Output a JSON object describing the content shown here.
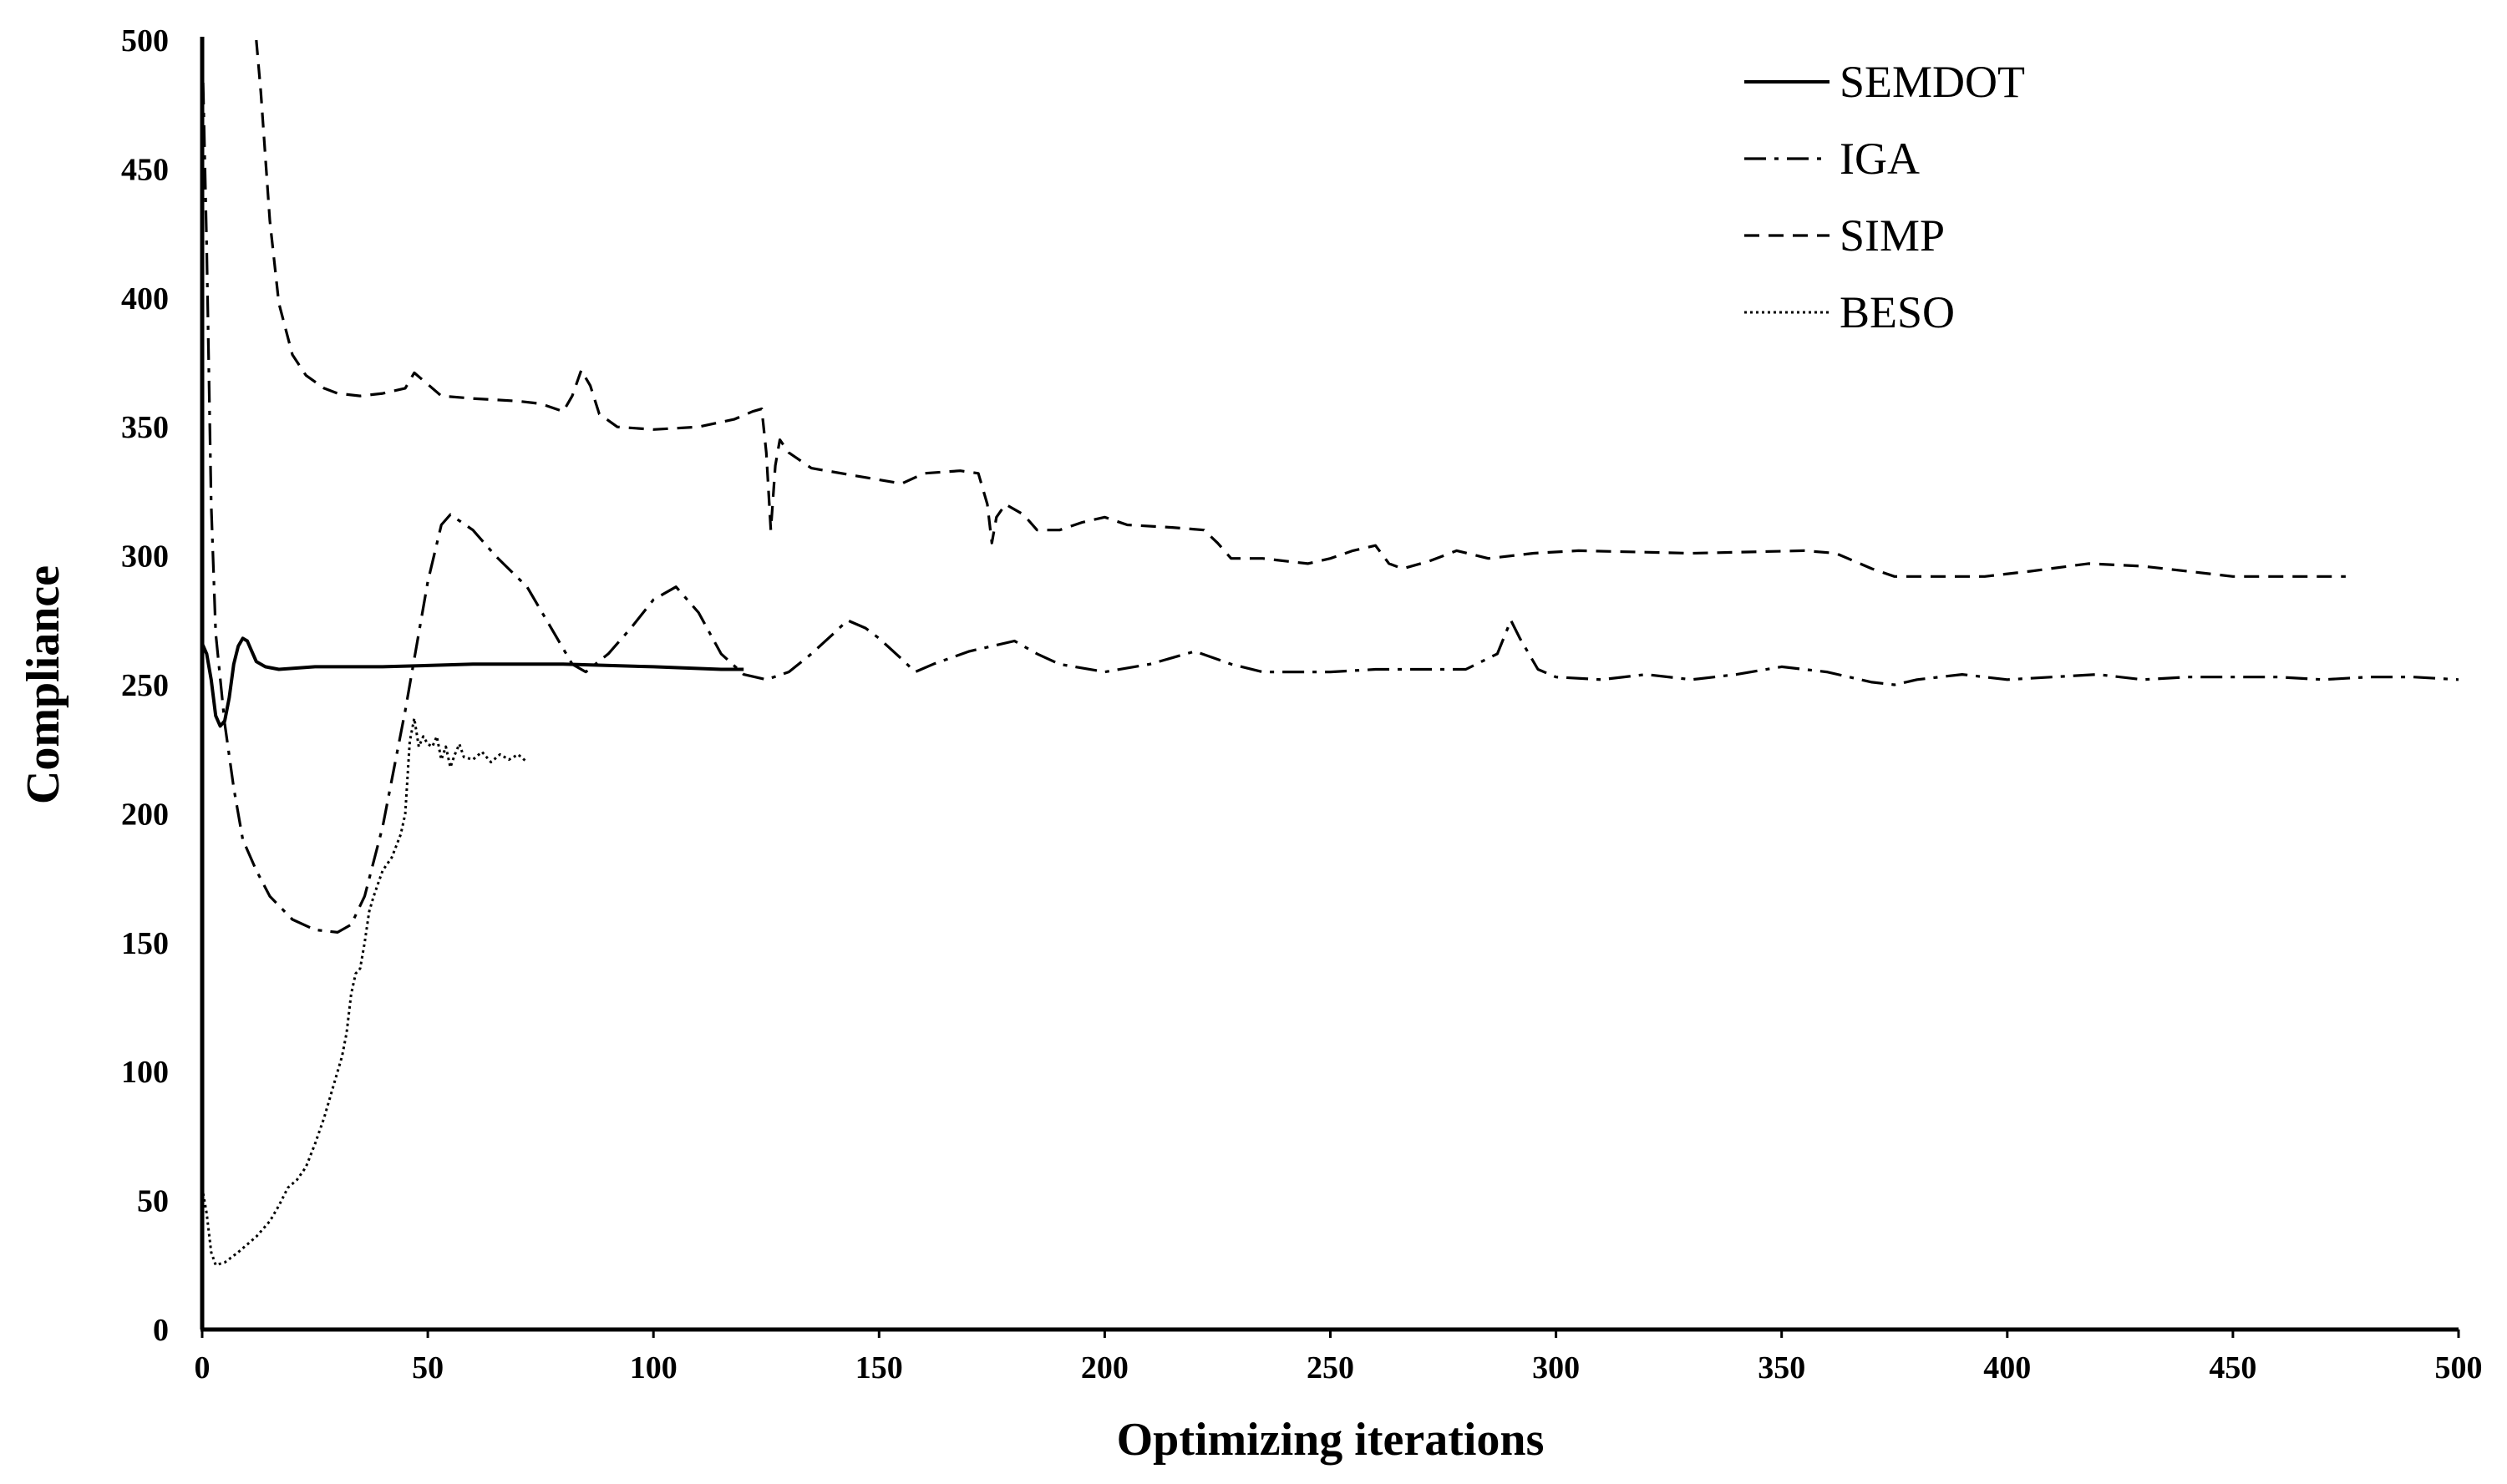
{
  "chart_data": {
    "type": "line",
    "title": "",
    "xlabel": "Optimizing iterations",
    "ylabel": "Compliance",
    "xlim": [
      0,
      500
    ],
    "ylim": [
      0,
      500
    ],
    "xticks": [
      0,
      50,
      100,
      150,
      200,
      250,
      300,
      350,
      400,
      450,
      500
    ],
    "yticks": [
      0,
      50,
      100,
      150,
      200,
      250,
      300,
      350,
      400,
      450,
      500
    ],
    "grid": false,
    "legend_position": "top-right",
    "series": [
      {
        "name": "SEMDOT",
        "style": "solid",
        "points": [
          [
            0,
            266
          ],
          [
            1,
            262
          ],
          [
            2,
            252
          ],
          [
            3,
            238
          ],
          [
            4,
            234
          ],
          [
            5,
            236
          ],
          [
            6,
            245
          ],
          [
            7,
            258
          ],
          [
            8,
            265
          ],
          [
            9,
            268
          ],
          [
            10,
            267
          ],
          [
            11,
            263
          ],
          [
            12,
            259
          ],
          [
            14,
            257
          ],
          [
            17,
            256
          ],
          [
            25,
            257
          ],
          [
            40,
            257
          ],
          [
            60,
            258
          ],
          [
            80,
            258
          ],
          [
            100,
            257
          ],
          [
            115,
            256
          ],
          [
            120,
            256
          ]
        ]
      },
      {
        "name": "IGA",
        "style": "dash-dot",
        "points": [
          [
            0,
            500
          ],
          [
            1,
            420
          ],
          [
            2,
            320
          ],
          [
            3,
            270
          ],
          [
            5,
            235
          ],
          [
            7,
            210
          ],
          [
            9,
            190
          ],
          [
            12,
            178
          ],
          [
            15,
            168
          ],
          [
            20,
            159
          ],
          [
            25,
            155
          ],
          [
            30,
            154
          ],
          [
            33,
            157
          ],
          [
            36,
            168
          ],
          [
            40,
            195
          ],
          [
            45,
            240
          ],
          [
            50,
            290
          ],
          [
            53,
            312
          ],
          [
            55,
            316
          ],
          [
            60,
            310
          ],
          [
            65,
            300
          ],
          [
            72,
            288
          ],
          [
            78,
            270
          ],
          [
            82,
            258
          ],
          [
            85,
            255
          ],
          [
            90,
            262
          ],
          [
            95,
            272
          ],
          [
            100,
            283
          ],
          [
            105,
            288
          ],
          [
            110,
            278
          ],
          [
            115,
            262
          ],
          [
            120,
            254
          ],
          [
            125,
            252
          ],
          [
            130,
            255
          ],
          [
            135,
            262
          ],
          [
            140,
            270
          ],
          [
            143,
            275
          ],
          [
            147,
            272
          ],
          [
            150,
            268
          ],
          [
            155,
            260
          ],
          [
            158,
            255
          ],
          [
            162,
            258
          ],
          [
            170,
            263
          ],
          [
            180,
            267
          ],
          [
            185,
            262
          ],
          [
            190,
            258
          ],
          [
            200,
            255
          ],
          [
            210,
            258
          ],
          [
            220,
            263
          ],
          [
            228,
            258
          ],
          [
            235,
            255
          ],
          [
            250,
            255
          ],
          [
            260,
            256
          ],
          [
            270,
            256
          ],
          [
            280,
            256
          ],
          [
            287,
            262
          ],
          [
            290,
            275
          ],
          [
            292,
            268
          ],
          [
            296,
            256
          ],
          [
            300,
            253
          ],
          [
            310,
            252
          ],
          [
            320,
            254
          ],
          [
            330,
            252
          ],
          [
            340,
            254
          ],
          [
            350,
            257
          ],
          [
            355,
            256
          ],
          [
            360,
            255
          ],
          [
            370,
            251
          ],
          [
            375,
            250
          ],
          [
            380,
            252
          ],
          [
            390,
            254
          ],
          [
            400,
            252
          ],
          [
            410,
            253
          ],
          [
            420,
            254
          ],
          [
            430,
            252
          ],
          [
            440,
            253
          ],
          [
            450,
            253
          ],
          [
            460,
            253
          ],
          [
            470,
            252
          ],
          [
            480,
            253
          ],
          [
            490,
            253
          ],
          [
            500,
            252
          ]
        ]
      },
      {
        "name": "SIMP",
        "style": "dashed",
        "points": [
          [
            12,
            500
          ],
          [
            13,
            480
          ],
          [
            15,
            430
          ],
          [
            17,
            398
          ],
          [
            20,
            378
          ],
          [
            23,
            370
          ],
          [
            27,
            365
          ],
          [
            30,
            363
          ],
          [
            35,
            362
          ],
          [
            40,
            363
          ],
          [
            45,
            365
          ],
          [
            47,
            371
          ],
          [
            49,
            368
          ],
          [
            53,
            362
          ],
          [
            60,
            361
          ],
          [
            70,
            360
          ],
          [
            75,
            359
          ],
          [
            80,
            356
          ],
          [
            82,
            362
          ],
          [
            84,
            372
          ],
          [
            86,
            366
          ],
          [
            88,
            355
          ],
          [
            92,
            350
          ],
          [
            100,
            349
          ],
          [
            110,
            350
          ],
          [
            118,
            353
          ],
          [
            122,
            356
          ],
          [
            124,
            357
          ],
          [
            125,
            340
          ],
          [
            126,
            310
          ],
          [
            127,
            335
          ],
          [
            128,
            345
          ],
          [
            130,
            340
          ],
          [
            135,
            334
          ],
          [
            145,
            331
          ],
          [
            155,
            328
          ],
          [
            160,
            332
          ],
          [
            168,
            333
          ],
          [
            172,
            332
          ],
          [
            174,
            320
          ],
          [
            175,
            305
          ],
          [
            176,
            315
          ],
          [
            178,
            320
          ],
          [
            182,
            316
          ],
          [
            185,
            310
          ],
          [
            190,
            310
          ],
          [
            195,
            313
          ],
          [
            200,
            315
          ],
          [
            205,
            312
          ],
          [
            215,
            311
          ],
          [
            222,
            310
          ],
          [
            225,
            305
          ],
          [
            228,
            299
          ],
          [
            235,
            299
          ],
          [
            245,
            297
          ],
          [
            250,
            299
          ],
          [
            255,
            302
          ],
          [
            260,
            304
          ],
          [
            263,
            297
          ],
          [
            266,
            295
          ],
          [
            272,
            298
          ],
          [
            278,
            302
          ],
          [
            285,
            299
          ],
          [
            295,
            301
          ],
          [
            305,
            302
          ],
          [
            330,
            301
          ],
          [
            355,
            302
          ],
          [
            362,
            301
          ],
          [
            370,
            295
          ],
          [
            375,
            292
          ],
          [
            395,
            292
          ],
          [
            405,
            294
          ],
          [
            418,
            297
          ],
          [
            430,
            296
          ],
          [
            440,
            294
          ],
          [
            450,
            292
          ],
          [
            475,
            292
          ]
        ]
      },
      {
        "name": "BESO",
        "style": "dotted",
        "points": [
          [
            0,
            55
          ],
          [
            1,
            45
          ],
          [
            2,
            30
          ],
          [
            3,
            25
          ],
          [
            5,
            26
          ],
          [
            8,
            30
          ],
          [
            12,
            36
          ],
          [
            15,
            42
          ],
          [
            17,
            48
          ],
          [
            19,
            55
          ],
          [
            21,
            58
          ],
          [
            23,
            63
          ],
          [
            25,
            72
          ],
          [
            27,
            82
          ],
          [
            29,
            94
          ],
          [
            31,
            106
          ],
          [
            32,
            115
          ],
          [
            33,
            130
          ],
          [
            34,
            138
          ],
          [
            35,
            140
          ],
          [
            36,
            150
          ],
          [
            37,
            162
          ],
          [
            38,
            168
          ],
          [
            40,
            178
          ],
          [
            42,
            183
          ],
          [
            44,
            192
          ],
          [
            45,
            200
          ],
          [
            46,
            228
          ],
          [
            47,
            237
          ],
          [
            48,
            226
          ],
          [
            49,
            230
          ],
          [
            50,
            227
          ],
          [
            51,
            226
          ],
          [
            52,
            230
          ],
          [
            53,
            221
          ],
          [
            54,
            226
          ],
          [
            55,
            218
          ],
          [
            56,
            223
          ],
          [
            57,
            227
          ],
          [
            58,
            222
          ],
          [
            60,
            221
          ],
          [
            62,
            224
          ],
          [
            64,
            220
          ],
          [
            66,
            223
          ],
          [
            68,
            221
          ],
          [
            70,
            223
          ],
          [
            72,
            220
          ]
        ]
      }
    ]
  }
}
